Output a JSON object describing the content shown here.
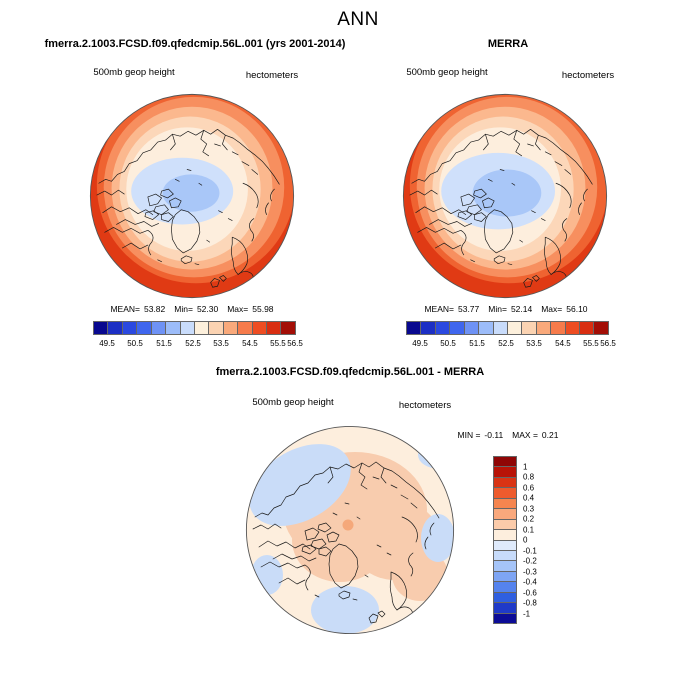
{
  "header": {
    "season_title": "ANN"
  },
  "panels": {
    "model": {
      "title": "fmerra.2.1003.FCSD.f09.qfedcmip.56L.001 (yrs 2001-2014)",
      "field": "500mb geop height",
      "units": "hectometers",
      "stats": {
        "mean_label": "MEAN=",
        "mean": "53.82",
        "min_label": "Min=",
        "min": "52.30",
        "max_label": "Max=",
        "max": "55.98"
      }
    },
    "obs": {
      "title": "MERRA",
      "field": "500mb geop height",
      "units": "hectometers",
      "stats": {
        "mean_label": "MEAN=",
        "mean": "53.77",
        "min_label": "Min=",
        "min": "52.14",
        "max_label": "Max=",
        "max": "56.10"
      }
    },
    "diff": {
      "title": "fmerra.2.1003.FCSD.f09.qfedcmip.56L.001 - MERRA",
      "field": "500mb geop height",
      "units": "hectometers",
      "stats": {
        "min_label": "MIN =",
        "min": "-0.11",
        "max_label": "MAX =",
        "max": "0.21"
      }
    }
  },
  "colorbar_top": {
    "tick_labels": [
      "49.5",
      "50.5",
      "51.5",
      "52.5",
      "53.5",
      "54.5",
      "55.5",
      "56.5"
    ],
    "tick_pos": [
      6.9,
      20.7,
      35.0,
      49.3,
      63.1,
      77.3,
      91.1,
      99.5
    ],
    "colors": [
      "#08088f",
      "#1c2fc4",
      "#2b49e0",
      "#3f66ee",
      "#6e92f5",
      "#9cbcf9",
      "#c9dcfb",
      "#fdf0dc",
      "#fbd3b2",
      "#f9a97b",
      "#f67b4b",
      "#ee4d22",
      "#d92e11",
      "#a30e06"
    ]
  },
  "colorbar_diff": {
    "tick_labels": [
      "1",
      "0.8",
      "0.6",
      "0.4",
      "0.3",
      "0.2",
      "0.1",
      "0",
      "-0.1",
      "-0.2",
      "-0.3",
      "-0.4",
      "-0.6",
      "-0.8",
      "-1"
    ],
    "colors": [
      "#8f0606",
      "#b81307",
      "#d93414",
      "#ee5b2d",
      "#f6854f",
      "#f9a87c",
      "#fbcbaa",
      "#fdeedd",
      "#dfeafb",
      "#c7dbfa",
      "#a5c4f8",
      "#7ea5f4",
      "#5583ee",
      "#2f5fe0",
      "#1f3ac8",
      "#0c0c96"
    ]
  },
  "map_palette": {
    "rim": "#e03a14",
    "band1": "#ef6331",
    "band2": "#f78f5f",
    "band3": "#fbb88e",
    "band4": "#fcd7b9",
    "band5": "#fdeedd",
    "blue_outer": "#cfe0fb",
    "blue_inner": "#a9c7f8",
    "coast": "#1a1a1a",
    "outline": "#555555"
  },
  "diff_palette": {
    "base": "#fdeedd",
    "warm1": "#f8ccae",
    "warm2": "#f5a87a",
    "cool1": "#c9dcf8"
  },
  "chart_data": [
    {
      "type": "heatmap",
      "subtype": "polar-stereographic-contour-map",
      "panel": "top-left",
      "title": "fmerra.2.1003.FCSD.f09.qfedcmip.56L.001 (yrs 2001-2014)",
      "season": "ANN",
      "variable": "500mb geop height",
      "units": "hectometers",
      "stats": {
        "mean": 53.82,
        "min": 52.3,
        "max": 55.98
      },
      "contour_levels": [
        49.5,
        50.0,
        50.5,
        51.0,
        51.5,
        52.0,
        52.5,
        53.0,
        53.5,
        54.0,
        54.5,
        55.0,
        55.5,
        56.0,
        56.5
      ],
      "palette": "blue-to-red, 14 classes",
      "pattern": "minimum (~52.3 hm, blue) over the central Arctic slightly toward Canada; values increase outward to ~56 hm (dark red) at the southern map edge"
    },
    {
      "type": "heatmap",
      "subtype": "polar-stereographic-contour-map",
      "panel": "top-right",
      "title": "MERRA",
      "season": "ANN",
      "variable": "500mb geop height",
      "units": "hectometers",
      "stats": {
        "mean": 53.77,
        "min": 52.14,
        "max": 56.1
      },
      "contour_levels": [
        49.5,
        50.0,
        50.5,
        51.0,
        51.5,
        52.0,
        52.5,
        53.0,
        53.5,
        54.0,
        54.5,
        55.0,
        55.5,
        56.0,
        56.5
      ],
      "palette": "blue-to-red, 14 classes",
      "pattern": "same structure as model with a slightly larger/deeper blue polar low"
    },
    {
      "type": "heatmap",
      "subtype": "polar-stereographic-contour-map",
      "panel": "bottom",
      "title": "fmerra.2.1003.FCSD.f09.qfedcmip.56L.001 - MERRA",
      "season": "ANN",
      "variable": "500mb geop height",
      "units": "hectometers",
      "stats": {
        "min": -0.11,
        "max": 0.21
      },
      "contour_levels": [
        -1,
        -0.8,
        -0.6,
        -0.4,
        -0.3,
        -0.2,
        -0.1,
        0,
        0.1,
        0.2,
        0.3,
        0.4,
        0.6,
        0.8,
        1
      ],
      "palette": "red(positive)-to-blue(negative), 16 classes",
      "pattern": "weak positive difference (+0.1 to +0.2) over the central Arctic, small +0.2/+0.3 spot at the pole, weak negative (-0.1 to 0) patches over the North Pacific, North Atlantic and eastern edge"
    }
  ]
}
